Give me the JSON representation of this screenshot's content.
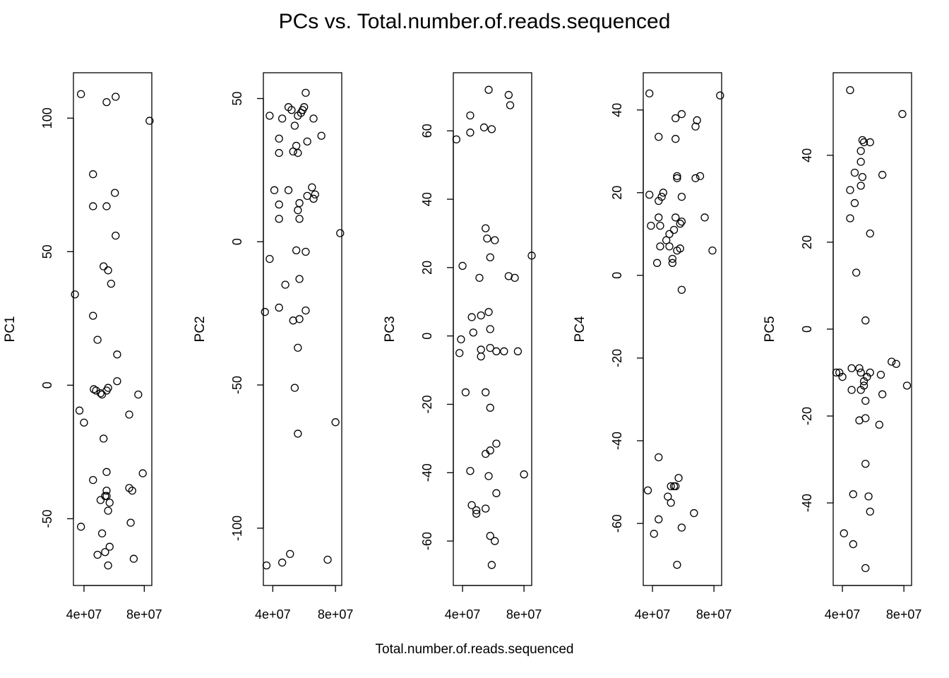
{
  "chart_data": {
    "type": "scatter",
    "title": "PCs vs. Total.number.of.reads.sequenced",
    "xlabel": "Total.number.of.reads.sequenced",
    "panels": [
      {
        "ylabel": "PC1",
        "xlim": [
          33000000,
          85000000
        ],
        "ylim": [
          -75,
          117
        ],
        "xticks": [
          {
            "v": 40000000,
            "label": "4e+07"
          },
          {
            "v": 80000000,
            "label": "8e+07"
          }
        ],
        "yticks": [
          {
            "v": -50,
            "label": "-50"
          },
          {
            "v": 0,
            "label": "0"
          },
          {
            "v": 50,
            "label": "50"
          },
          {
            "v": 100,
            "label": "100"
          }
        ],
        "points": [
          [
            38,
            109
          ],
          [
            83.5,
            99
          ],
          [
            55,
            106
          ],
          [
            61,
            108
          ],
          [
            46,
            79
          ],
          [
            46,
            67
          ],
          [
            55,
            67
          ],
          [
            60.5,
            72
          ],
          [
            61,
            56
          ],
          [
            53,
            44.5
          ],
          [
            56,
            43
          ],
          [
            58,
            38
          ],
          [
            34,
            34
          ],
          [
            46,
            26
          ],
          [
            49,
            17
          ],
          [
            62,
            11.5
          ],
          [
            62,
            1.5
          ],
          [
            46.5,
            -1.5
          ],
          [
            48,
            -2
          ],
          [
            51,
            -3
          ],
          [
            52,
            -3.5
          ],
          [
            55,
            -2
          ],
          [
            56,
            -1
          ],
          [
            76,
            -3.5
          ],
          [
            37,
            -9.5
          ],
          [
            40,
            -14
          ],
          [
            70,
            -11
          ],
          [
            53,
            -20
          ],
          [
            55,
            -32.5
          ],
          [
            46,
            -35.5
          ],
          [
            55,
            -39.5
          ],
          [
            54,
            -41.5
          ],
          [
            55,
            -41.5
          ],
          [
            51,
            -43
          ],
          [
            57,
            -44
          ],
          [
            70,
            -38.5
          ],
          [
            72,
            -39.5
          ],
          [
            56,
            -47
          ],
          [
            71,
            -51.5
          ],
          [
            79,
            -33
          ],
          [
            38,
            -53
          ],
          [
            52,
            -55.5
          ],
          [
            57,
            -60.5
          ],
          [
            54,
            -62.5
          ],
          [
            49,
            -63.5
          ],
          [
            56,
            -67.5
          ],
          [
            73,
            -65
          ]
        ]
      },
      {
        "ylabel": "PC2",
        "xlim": [
          34000000,
          84000000
        ],
        "ylim": [
          -120,
          59
        ],
        "xticks": [
          {
            "v": 40000000,
            "label": "4e+07"
          },
          {
            "v": 80000000,
            "label": "8e+07"
          }
        ],
        "yticks": [
          {
            "v": -100,
            "label": "-100"
          },
          {
            "v": -50,
            "label": "-50"
          },
          {
            "v": 0,
            "label": "0"
          },
          {
            "v": 50,
            "label": "50"
          }
        ],
        "points": [
          [
            38,
            44
          ],
          [
            46,
            43
          ],
          [
            50,
            47
          ],
          [
            52,
            46
          ],
          [
            58,
            45
          ],
          [
            59,
            46
          ],
          [
            60,
            47
          ],
          [
            61,
            52
          ],
          [
            56,
            44
          ],
          [
            54,
            40.5
          ],
          [
            66,
            43
          ],
          [
            71,
            37
          ],
          [
            44,
            36
          ],
          [
            55,
            33.5
          ],
          [
            62,
            35
          ],
          [
            44,
            31
          ],
          [
            53,
            31.5
          ],
          [
            56,
            31
          ],
          [
            41,
            18
          ],
          [
            50,
            18
          ],
          [
            65,
            19
          ],
          [
            67,
            16.5
          ],
          [
            62,
            16
          ],
          [
            66,
            15
          ],
          [
            44,
            13
          ],
          [
            57,
            13.5
          ],
          [
            56,
            11
          ],
          [
            44,
            8
          ],
          [
            57,
            8
          ],
          [
            55,
            -3
          ],
          [
            61,
            -3.5
          ],
          [
            38,
            -6
          ],
          [
            57,
            -13
          ],
          [
            48,
            -15
          ],
          [
            61,
            -24
          ],
          [
            44,
            -23
          ],
          [
            35,
            -24.5
          ],
          [
            57,
            -27
          ],
          [
            53,
            -27.5
          ],
          [
            56,
            -37
          ],
          [
            54,
            -51
          ],
          [
            56,
            -67
          ],
          [
            80,
            -63
          ],
          [
            51,
            -109
          ],
          [
            36,
            -113
          ],
          [
            46,
            -112
          ],
          [
            75,
            -111
          ],
          [
            83,
            3
          ]
        ]
      },
      {
        "ylabel": "PC3",
        "xlim": [
          34000000,
          85000000
        ],
        "ylim": [
          -73,
          77
        ],
        "xticks": [
          {
            "v": 40000000,
            "label": "4e+07"
          },
          {
            "v": 80000000,
            "label": "8e+07"
          }
        ],
        "yticks": [
          {
            "v": -60,
            "label": "-60"
          },
          {
            "v": -40,
            "label": "-40"
          },
          {
            "v": -20,
            "label": "-20"
          },
          {
            "v": 0,
            "label": "0"
          },
          {
            "v": 20,
            "label": "20"
          },
          {
            "v": 40,
            "label": "40"
          },
          {
            "v": 60,
            "label": "60"
          }
        ],
        "points": [
          [
            57,
            72
          ],
          [
            70,
            70.5
          ],
          [
            71,
            67.5
          ],
          [
            45,
            64.5
          ],
          [
            45,
            59.5
          ],
          [
            54,
            61
          ],
          [
            59,
            60.5
          ],
          [
            36,
            57.5
          ],
          [
            55,
            31.5
          ],
          [
            56,
            28.5
          ],
          [
            61,
            28
          ],
          [
            58,
            23
          ],
          [
            85,
            23.5
          ],
          [
            40,
            20.5
          ],
          [
            70,
            17.5
          ],
          [
            74,
            17
          ],
          [
            51,
            17
          ],
          [
            57,
            7
          ],
          [
            52,
            6
          ],
          [
            46,
            5.5
          ],
          [
            58,
            2
          ],
          [
            47,
            1
          ],
          [
            39,
            -1
          ],
          [
            52,
            -4
          ],
          [
            58,
            -3.5
          ],
          [
            62,
            -4.5
          ],
          [
            67,
            -4.5
          ],
          [
            76,
            -4.5
          ],
          [
            38,
            -5
          ],
          [
            52,
            -6
          ],
          [
            42,
            -16.5
          ],
          [
            55,
            -16.5
          ],
          [
            58,
            -21
          ],
          [
            62,
            -31.5
          ],
          [
            58,
            -33.5
          ],
          [
            55,
            -34.5
          ],
          [
            57,
            -41
          ],
          [
            45,
            -39.5
          ],
          [
            80,
            -40.5
          ],
          [
            62,
            -46
          ],
          [
            46,
            -49.5
          ],
          [
            49,
            -51
          ],
          [
            49,
            -52
          ],
          [
            55,
            -50.5
          ],
          [
            58,
            -58.5
          ],
          [
            61,
            -60
          ],
          [
            59,
            -67
          ]
        ]
      },
      {
        "ylabel": "PC4",
        "xlim": [
          34000000,
          85000000
        ],
        "ylim": [
          -75,
          49
        ],
        "xticks": [
          {
            "v": 40000000,
            "label": "4e+07"
          },
          {
            "v": 80000000,
            "label": "8e+07"
          }
        ],
        "yticks": [
          {
            "v": -60,
            "label": "-60"
          },
          {
            "v": -40,
            "label": "-40"
          },
          {
            "v": -20,
            "label": "-20"
          },
          {
            "v": 0,
            "label": "0"
          },
          {
            "v": 20,
            "label": "20"
          },
          {
            "v": 40,
            "label": "40"
          }
        ],
        "points": [
          [
            38,
            44
          ],
          [
            84,
            43.5
          ],
          [
            59,
            39
          ],
          [
            55,
            38
          ],
          [
            69,
            37.5
          ],
          [
            68,
            36
          ],
          [
            44,
            33.5
          ],
          [
            55,
            33
          ],
          [
            56,
            24
          ],
          [
            56,
            23.5
          ],
          [
            71,
            24
          ],
          [
            68,
            23.5
          ],
          [
            47,
            20
          ],
          [
            38,
            19.5
          ],
          [
            46,
            19
          ],
          [
            59,
            19
          ],
          [
            44,
            18
          ],
          [
            44,
            14
          ],
          [
            55,
            14
          ],
          [
            74,
            14
          ],
          [
            39,
            12
          ],
          [
            45,
            12
          ],
          [
            58,
            12.5
          ],
          [
            59,
            13
          ],
          [
            54,
            11
          ],
          [
            51,
            10
          ],
          [
            49,
            8.5
          ],
          [
            45,
            7
          ],
          [
            51,
            7
          ],
          [
            56,
            6
          ],
          [
            58,
            6.5
          ],
          [
            79,
            6
          ],
          [
            53,
            4
          ],
          [
            43,
            3
          ],
          [
            53,
            3
          ],
          [
            59,
            -3.5
          ],
          [
            44,
            -44
          ],
          [
            37,
            -52
          ],
          [
            55,
            -51
          ],
          [
            54,
            -51
          ],
          [
            52,
            -51
          ],
          [
            57,
            -49
          ],
          [
            50,
            -53.5
          ],
          [
            52,
            -55
          ],
          [
            44,
            -59
          ],
          [
            67,
            -57.5
          ],
          [
            41,
            -62.5
          ],
          [
            59,
            -61
          ],
          [
            56,
            -70
          ]
        ]
      },
      {
        "ylabel": "PC5",
        "xlim": [
          34000000,
          85000000
        ],
        "ylim": [
          -59,
          59
        ],
        "xticks": [
          {
            "v": 40000000,
            "label": "4e+07"
          },
          {
            "v": 80000000,
            "label": "8e+07"
          }
        ],
        "yticks": [
          {
            "v": -40,
            "label": "-40"
          },
          {
            "v": -20,
            "label": "-20"
          },
          {
            "v": 0,
            "label": "0"
          },
          {
            "v": 20,
            "label": "20"
          },
          {
            "v": 40,
            "label": "40"
          }
        ],
        "points": [
          [
            45,
            55
          ],
          [
            79,
            49.5
          ],
          [
            53,
            43.5
          ],
          [
            54,
            43
          ],
          [
            58,
            43
          ],
          [
            52,
            41
          ],
          [
            52,
            38.5
          ],
          [
            48,
            36
          ],
          [
            66,
            35.5
          ],
          [
            53,
            35
          ],
          [
            52,
            33
          ],
          [
            45,
            32
          ],
          [
            48,
            29
          ],
          [
            45,
            25.5
          ],
          [
            58,
            22
          ],
          [
            49,
            13
          ],
          [
            55,
            2
          ],
          [
            36,
            -10
          ],
          [
            38,
            -10
          ],
          [
            40,
            -11
          ],
          [
            46,
            -9
          ],
          [
            51,
            -9
          ],
          [
            52,
            -10
          ],
          [
            54,
            -12
          ],
          [
            54,
            -13
          ],
          [
            56,
            -11
          ],
          [
            58,
            -10
          ],
          [
            65,
            -10.5
          ],
          [
            72,
            -7.5
          ],
          [
            75,
            -8
          ],
          [
            82,
            -13
          ],
          [
            46,
            -14
          ],
          [
            52,
            -14
          ],
          [
            55,
            -16.5
          ],
          [
            66,
            -15
          ],
          [
            51,
            -21
          ],
          [
            55,
            -20.5
          ],
          [
            64,
            -22
          ],
          [
            55,
            -31
          ],
          [
            47,
            -38
          ],
          [
            57,
            -38.5
          ],
          [
            58,
            -42
          ],
          [
            41,
            -47
          ],
          [
            47,
            -49.5
          ],
          [
            55,
            -55
          ]
        ]
      }
    ]
  }
}
